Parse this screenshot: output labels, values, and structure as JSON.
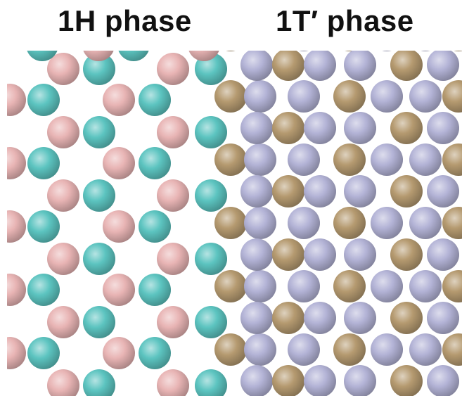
{
  "labels": {
    "phase_1h": "1H phase",
    "phase_1t": "1T′ phase"
  },
  "colors": {
    "pink_atom": "#e8b4b4",
    "teal_atom": "#5cc4c0",
    "tan_atom": "#b59a70",
    "lavender_atom": "#b3b3d6",
    "background": "#ffffff"
  }
}
